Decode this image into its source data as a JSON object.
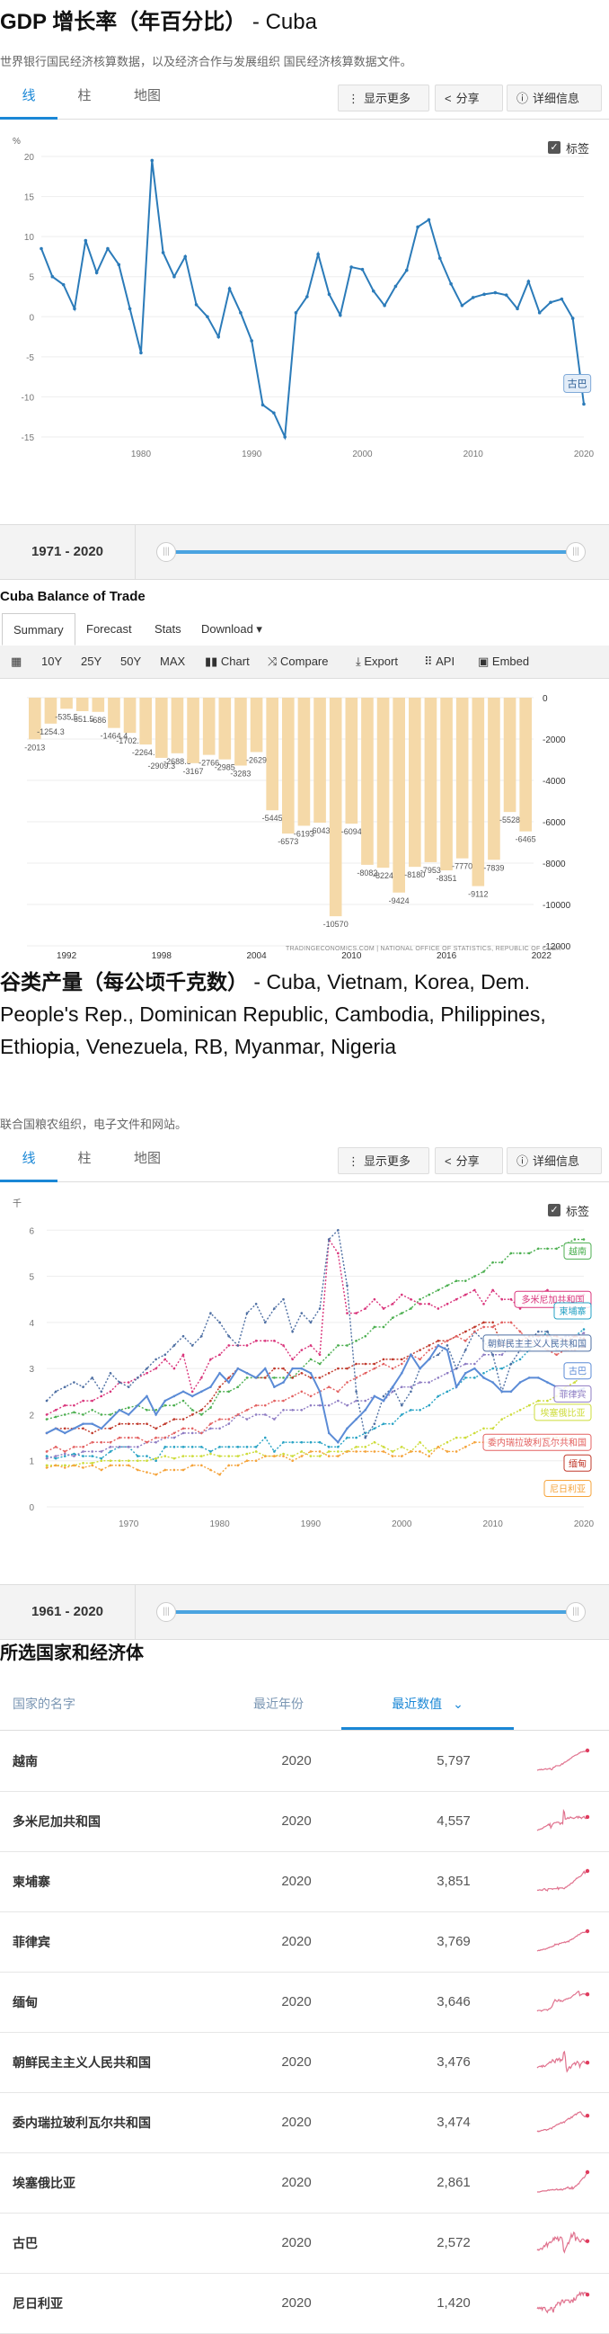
{
  "gdp_section": {
    "title_bold": "GDP 增长率（年百分比）",
    "title_rest": " - Cuba",
    "subtitle": "世界银行国民经济核算数据，以及经济合作与发展组织 国民经济核算数据文件。",
    "tabs": [
      "线",
      "柱",
      "地图"
    ],
    "buttons": {
      "more": "显示更多",
      "share": "分享",
      "details": "详细信息"
    },
    "label_toggle": "标签",
    "range_label": "1971 - 2020"
  },
  "trade_section": {
    "title": "Cuba Balance of Trade",
    "tabs": [
      "Summary",
      "Forecast",
      "Stats",
      "Download ▾"
    ],
    "toolbar": [
      "10Y",
      "25Y",
      "50Y",
      "MAX",
      "Chart",
      "Compare",
      "Export",
      "API",
      "Embed"
    ],
    "source": "TRADINGECONOMICS.COM  |  NATIONAL OFFICE OF STATISTICS, REPUBLIC OF CUBA"
  },
  "cereal_section": {
    "title_bold": "谷类产量（每公顷千克数）",
    "title_rest": " - Cuba, Vietnam, Korea, Dem. People's Rep., Dominican Republic, Cambodia, Philippines, Ethiopia, Venezuela, RB, Myanmar, Nigeria",
    "subtitle": "联合国粮农组织，电子文件和网站。",
    "tabs": [
      "线",
      "柱",
      "地图"
    ],
    "buttons": {
      "more": "显示更多",
      "share": "分享",
      "details": "详细信息"
    },
    "label_toggle": "标签",
    "range_label": "1961 - 2020"
  },
  "table": {
    "title": "所选国家和经济体",
    "headers": {
      "name": "国家的名字",
      "year": "最近年份",
      "value": "最近数值"
    },
    "rows": [
      {
        "name": "越南",
        "year": "2020",
        "value": "5,797"
      },
      {
        "name": "多米尼加共和国",
        "year": "2020",
        "value": "4,557"
      },
      {
        "name": "柬埔寨",
        "year": "2020",
        "value": "3,851"
      },
      {
        "name": "菲律宾",
        "year": "2020",
        "value": "3,769"
      },
      {
        "name": "缅甸",
        "year": "2020",
        "value": "3,646"
      },
      {
        "name": "朝鲜民主主义人民共和国",
        "year": "2020",
        "value": "3,476"
      },
      {
        "name": "委内瑞拉玻利瓦尔共和国",
        "year": "2020",
        "value": "3,474"
      },
      {
        "name": "埃塞俄比亚",
        "year": "2020",
        "value": "2,861"
      },
      {
        "name": "古巴",
        "year": "2020",
        "value": "2,572"
      },
      {
        "name": "尼日利亚",
        "year": "2020",
        "value": "1,420"
      }
    ]
  },
  "colors": {
    "accent": "#1a87d6",
    "gdp_line": "#2b7bb9",
    "trade_bar": "#f5d9a8"
  },
  "chart_data": [
    {
      "type": "line",
      "title": "",
      "ylabel": "%",
      "ylim": [
        -15,
        20
      ],
      "yticks": [
        -15,
        -10,
        -5,
        0,
        5,
        10,
        15,
        20
      ],
      "xticks": [
        1980,
        1990,
        2000,
        2010,
        2020
      ],
      "grid": true,
      "series": [
        {
          "name": "古巴",
          "x": [
            1971,
            1972,
            1973,
            1974,
            1975,
            1976,
            1977,
            1978,
            1979,
            1980,
            1981,
            1982,
            1983,
            1984,
            1985,
            1986,
            1987,
            1988,
            1989,
            1990,
            1991,
            1992,
            1993,
            1994,
            1995,
            1996,
            1997,
            1998,
            1999,
            2000,
            2001,
            2002,
            2003,
            2004,
            2005,
            2006,
            2007,
            2008,
            2009,
            2010,
            2011,
            2012,
            2013,
            2014,
            2015,
            2016,
            2017,
            2018,
            2019,
            2020
          ],
          "values": [
            8.5,
            5,
            4,
            1,
            9.5,
            5.5,
            8.5,
            6.5,
            1,
            -4.5,
            19.5,
            8,
            5,
            7.5,
            1.5,
            0,
            -2.5,
            3.5,
            0.5,
            -3,
            -11,
            -12,
            -15,
            0.5,
            2.5,
            7.8,
            2.8,
            0.2,
            6.2,
            5.9,
            3.2,
            1.4,
            3.8,
            5.8,
            11.2,
            12.1,
            7.3,
            4.1,
            1.4,
            2.4,
            2.8,
            3,
            2.7,
            1,
            4.4,
            0.5,
            1.8,
            2.2,
            -0.2,
            -10.9
          ]
        }
      ]
    },
    {
      "type": "bar",
      "title": "",
      "xticks": [
        "1992",
        "1998",
        "2004",
        "2010",
        "2016",
        "2022"
      ],
      "yticks": [
        0,
        -2000,
        -4000,
        -6000,
        -8000,
        -10000,
        -12000
      ],
      "ylim": [
        -12000,
        0
      ],
      "categories": [
        "1990",
        "1991",
        "1992",
        "1993",
        "1994",
        "1995",
        "1996",
        "1997",
        "1998",
        "1999",
        "2000",
        "2001",
        "2002",
        "2003",
        "2004",
        "2005",
        "2006",
        "2007",
        "2008",
        "2009",
        "2010",
        "2011",
        "2012",
        "2013",
        "2014",
        "2015",
        "2016",
        "2017",
        "2018",
        "2019",
        "2020",
        "2021"
      ],
      "values": [
        -2013,
        -1254.3,
        -535.5,
        -651.5,
        -686,
        -1464.4,
        -1702.5,
        -2264.5,
        -2909.3,
        -2688.8,
        -3167,
        -2766,
        -2985,
        -3283,
        -2629,
        -5445,
        -6573,
        -6193,
        -6043,
        -10570,
        -6094,
        -8082,
        -8224,
        -9424,
        -8180,
        -7953,
        -8351,
        -7770,
        -9112,
        -7839,
        -5528,
        -6465
      ]
    },
    {
      "type": "line",
      "title": "",
      "ylabel": "千",
      "ylim": [
        0,
        6.2
      ],
      "yticks": [
        0,
        1,
        2,
        3,
        4,
        5,
        6
      ],
      "xticks": [
        1970,
        1980,
        1990,
        2000,
        2010,
        2020
      ],
      "grid": true,
      "x_start": 1961,
      "x_end": 2020,
      "series": [
        {
          "name": "越南",
          "color": "#4caf50",
          "values": [
            1.9,
            1.95,
            2.0,
            2.05,
            2.0,
            2.1,
            2.0,
            2.0,
            2.1,
            2.15,
            2.2,
            2.1,
            2.1,
            2.2,
            2.2,
            2.3,
            2.1,
            2.0,
            2.15,
            2.5,
            2.5,
            2.6,
            2.8,
            2.8,
            2.8,
            2.8,
            2.8,
            2.8,
            3.0,
            3.2,
            3.1,
            3.3,
            3.5,
            3.5,
            3.6,
            3.7,
            3.9,
            3.9,
            4.1,
            4.2,
            4.3,
            4.5,
            4.6,
            4.7,
            4.8,
            4.9,
            4.9,
            5.0,
            5.1,
            5.3,
            5.3,
            5.5,
            5.5,
            5.5,
            5.6,
            5.6,
            5.6,
            5.7,
            5.8,
            5.8
          ]
        },
        {
          "name": "多米尼加共和国",
          "color": "#d9347b",
          "values": [
            2.0,
            2.1,
            2.2,
            2.2,
            2.3,
            2.3,
            2.4,
            2.5,
            2.7,
            2.7,
            2.8,
            2.9,
            3.0,
            3.2,
            3.0,
            3.3,
            2.5,
            2.8,
            3.2,
            3.3,
            3.5,
            3.5,
            3.5,
            3.6,
            3.6,
            3.6,
            3.5,
            3.2,
            3.4,
            3.5,
            3.3,
            5.8,
            5.5,
            4.2,
            4.2,
            4.3,
            4.5,
            4.3,
            4.4,
            4.6,
            4.5,
            4.4,
            4.4,
            4.3,
            4.4,
            4.5,
            4.6,
            4.7,
            4.4,
            4.7,
            4.5,
            4.5,
            4.3,
            4.5,
            4.6,
            4.7,
            4.4,
            4.3,
            4.5,
            4.6
          ]
        },
        {
          "name": "柬埔寨",
          "color": "#26a2c4",
          "values": [
            1.1,
            1.05,
            1.1,
            1.15,
            1.1,
            1.1,
            1.05,
            1.2,
            1.3,
            1.3,
            1.1,
            1.1,
            1.0,
            1.3,
            1.3,
            1.3,
            1.3,
            1.3,
            1.2,
            1.3,
            1.3,
            1.3,
            1.3,
            1.3,
            1.5,
            1.2,
            1.4,
            1.4,
            1.4,
            1.4,
            1.4,
            1.3,
            1.3,
            1.5,
            1.5,
            1.6,
            1.7,
            1.8,
            1.8,
            2.0,
            2.1,
            2.1,
            2.2,
            2.4,
            2.5,
            2.6,
            2.8,
            2.8,
            2.9,
            3.0,
            3.0,
            3.1,
            3.2,
            3.4,
            3.6,
            3.8,
            3.5,
            3.7,
            3.7,
            3.85
          ]
        },
        {
          "name": "菲律宾",
          "color": "#8e7cc3",
          "values": [
            1.05,
            1.1,
            1.15,
            1.1,
            1.2,
            1.2,
            1.2,
            1.3,
            1.3,
            1.3,
            1.3,
            1.4,
            1.4,
            1.5,
            1.5,
            1.6,
            1.6,
            1.6,
            1.7,
            1.7,
            1.8,
            2.0,
            1.9,
            2.0,
            2.0,
            1.9,
            2.1,
            2.1,
            2.1,
            2.2,
            2.2,
            2.2,
            2.3,
            2.2,
            2.3,
            2.3,
            2.4,
            2.3,
            2.5,
            2.6,
            2.6,
            2.7,
            2.7,
            2.8,
            2.9,
            3.0,
            3.1,
            3.1,
            3.3,
            3.3,
            3.3,
            3.5,
            3.5,
            3.6,
            3.6,
            3.6,
            3.6,
            3.7,
            3.7,
            3.77
          ]
        },
        {
          "name": "缅甸",
          "color": "#c0392b",
          "values": [
            1.6,
            1.7,
            1.7,
            1.7,
            1.7,
            1.6,
            1.7,
            1.7,
            1.8,
            1.8,
            1.8,
            1.8,
            1.7,
            1.8,
            1.9,
            1.9,
            2.0,
            2.1,
            2.3,
            2.6,
            2.8,
            3.0,
            2.9,
            2.8,
            2.8,
            3.0,
            3.0,
            2.8,
            2.9,
            2.8,
            2.8,
            2.9,
            3.0,
            3.0,
            3.1,
            3.1,
            3.1,
            3.2,
            3.2,
            3.2,
            3.3,
            3.4,
            3.5,
            3.6,
            3.6,
            3.7,
            3.8,
            3.9,
            4.0,
            4.0,
            3.5,
            3.6,
            3.6,
            3.7,
            3.7,
            3.7,
            3.7,
            3.6,
            3.7,
            3.65
          ]
        },
        {
          "name": "朝鲜民主主义人民共和国",
          "color": "#4e6fa3",
          "values": [
            2.3,
            2.5,
            2.6,
            2.7,
            2.6,
            2.8,
            2.5,
            2.9,
            2.7,
            2.6,
            2.8,
            3.0,
            3.2,
            3.3,
            3.5,
            3.7,
            3.5,
            3.7,
            4.2,
            4.0,
            3.7,
            3.5,
            4.2,
            4.4,
            4.0,
            4.3,
            4.5,
            3.8,
            4.2,
            4.0,
            4.3,
            5.8,
            6.0,
            4.8,
            2.5,
            1.5,
            1.8,
            2.4,
            2.6,
            2.2,
            2.5,
            3.0,
            3.2,
            3.3,
            3.5,
            3.0,
            3.4,
            3.8,
            3.6,
            3.3,
            2.5,
            3.1,
            3.4,
            3.6,
            3.8,
            3.8,
            3.4,
            3.4,
            3.5,
            3.5
          ]
        },
        {
          "name": "委内瑞拉玻利瓦尔共和国",
          "color": "#e36161",
          "values": [
            1.2,
            1.3,
            1.2,
            1.3,
            1.3,
            1.4,
            1.4,
            1.4,
            1.5,
            1.5,
            1.5,
            1.4,
            1.5,
            1.5,
            1.6,
            1.7,
            1.7,
            1.6,
            1.8,
            1.9,
            1.9,
            2.0,
            2.1,
            2.2,
            2.2,
            2.3,
            2.3,
            2.4,
            2.5,
            2.4,
            2.5,
            2.6,
            2.5,
            2.7,
            2.8,
            2.9,
            3.0,
            3.1,
            3.0,
            3.1,
            3.3,
            3.2,
            3.4,
            3.5,
            3.6,
            3.7,
            3.6,
            3.8,
            3.9,
            3.9,
            4.0,
            4.0,
            3.8,
            3.6,
            3.5,
            3.4,
            3.3,
            3.4,
            3.4,
            3.47
          ]
        },
        {
          "name": "埃塞俄比亚",
          "color": "#cddc39",
          "values": [
            0.9,
            0.9,
            0.9,
            0.9,
            0.95,
            0.95,
            1.0,
            1.0,
            1.0,
            1.0,
            1.0,
            1.0,
            1.05,
            1.1,
            1.05,
            1.1,
            1.1,
            1.1,
            1.15,
            1.1,
            1.1,
            1.1,
            1.15,
            1.2,
            1.1,
            1.1,
            1.15,
            1.1,
            1.2,
            1.1,
            1.1,
            1.2,
            1.2,
            1.2,
            1.3,
            1.3,
            1.4,
            1.3,
            1.2,
            1.3,
            1.2,
            1.4,
            1.2,
            1.3,
            1.4,
            1.5,
            1.5,
            1.6,
            1.7,
            1.7,
            1.9,
            2.0,
            2.1,
            2.2,
            2.3,
            2.3,
            2.4,
            2.6,
            2.7,
            2.86
          ]
        },
        {
          "name": "古巴",
          "color": "#5b8bd6",
          "values": [
            1.6,
            1.7,
            1.6,
            1.7,
            1.8,
            1.8,
            1.7,
            1.9,
            2.1,
            2.0,
            2.2,
            2.4,
            2.0,
            2.3,
            2.4,
            2.5,
            2.4,
            2.5,
            2.6,
            2.9,
            2.7,
            3.0,
            2.9,
            2.8,
            3.0,
            2.6,
            2.7,
            3.0,
            3.0,
            2.9,
            2.5,
            1.6,
            1.4,
            1.7,
            1.9,
            2.1,
            2.4,
            2.3,
            2.6,
            2.9,
            3.3,
            3.0,
            3.2,
            3.5,
            3.4,
            2.6,
            2.9,
            3.0,
            2.8,
            2.7,
            2.5,
            2.5,
            2.7,
            2.8,
            2.8,
            2.7,
            2.6,
            2.5,
            2.5,
            2.57
          ]
        },
        {
          "name": "尼日利亚",
          "color": "#f5a33a",
          "values": [
            0.85,
            0.9,
            0.85,
            0.9,
            0.85,
            0.9,
            0.8,
            0.9,
            0.9,
            0.9,
            0.8,
            0.75,
            0.7,
            0.8,
            0.8,
            0.8,
            0.9,
            0.9,
            0.8,
            0.7,
            0.9,
            0.9,
            1.0,
            1.0,
            1.1,
            1.1,
            1.1,
            1.0,
            1.1,
            1.2,
            1.2,
            1.1,
            1.1,
            1.2,
            1.2,
            1.2,
            1.2,
            1.2,
            1.1,
            1.1,
            1.2,
            1.2,
            1.1,
            1.3,
            1.2,
            1.2,
            1.3,
            1.4,
            1.4,
            1.4,
            1.5,
            1.4,
            1.5,
            1.5,
            1.4,
            1.5,
            1.5,
            1.5,
            1.4,
            1.42
          ]
        }
      ]
    }
  ]
}
